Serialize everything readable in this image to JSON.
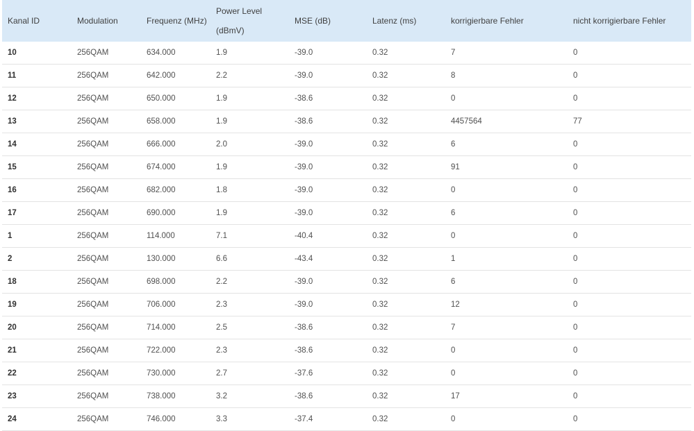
{
  "table": {
    "headers": [
      {
        "line1": "Kanal ID",
        "line2": ""
      },
      {
        "line1": "Modulation",
        "line2": ""
      },
      {
        "line1": "Frequenz (MHz)",
        "line2": ""
      },
      {
        "line1": "Power Level",
        "line2": "(dBmV)"
      },
      {
        "line1": "MSE (dB)",
        "line2": ""
      },
      {
        "line1": "Latenz (ms)",
        "line2": ""
      },
      {
        "line1": "korrigierbare Fehler",
        "line2": ""
      },
      {
        "line1": "nicht korrigierbare Fehler",
        "line2": ""
      }
    ],
    "rows": [
      [
        "10",
        "256QAM",
        "634.000",
        "1.9",
        "-39.0",
        "0.32",
        "7",
        "0"
      ],
      [
        "11",
        "256QAM",
        "642.000",
        "2.2",
        "-39.0",
        "0.32",
        "8",
        "0"
      ],
      [
        "12",
        "256QAM",
        "650.000",
        "1.9",
        "-38.6",
        "0.32",
        "0",
        "0"
      ],
      [
        "13",
        "256QAM",
        "658.000",
        "1.9",
        "-38.6",
        "0.32",
        "4457564",
        "77"
      ],
      [
        "14",
        "256QAM",
        "666.000",
        "2.0",
        "-39.0",
        "0.32",
        "6",
        "0"
      ],
      [
        "15",
        "256QAM",
        "674.000",
        "1.9",
        "-39.0",
        "0.32",
        "91",
        "0"
      ],
      [
        "16",
        "256QAM",
        "682.000",
        "1.8",
        "-39.0",
        "0.32",
        "0",
        "0"
      ],
      [
        "17",
        "256QAM",
        "690.000",
        "1.9",
        "-39.0",
        "0.32",
        "6",
        "0"
      ],
      [
        "1",
        "256QAM",
        "114.000",
        "7.1",
        "-40.4",
        "0.32",
        "0",
        "0"
      ],
      [
        "2",
        "256QAM",
        "130.000",
        "6.6",
        "-43.4",
        "0.32",
        "1",
        "0"
      ],
      [
        "18",
        "256QAM",
        "698.000",
        "2.2",
        "-39.0",
        "0.32",
        "6",
        "0"
      ],
      [
        "19",
        "256QAM",
        "706.000",
        "2.3",
        "-39.0",
        "0.32",
        "12",
        "0"
      ],
      [
        "20",
        "256QAM",
        "714.000",
        "2.5",
        "-38.6",
        "0.32",
        "7",
        "0"
      ],
      [
        "21",
        "256QAM",
        "722.000",
        "2.3",
        "-38.6",
        "0.32",
        "0",
        "0"
      ],
      [
        "22",
        "256QAM",
        "730.000",
        "2.7",
        "-37.6",
        "0.32",
        "0",
        "0"
      ],
      [
        "23",
        "256QAM",
        "738.000",
        "3.2",
        "-38.6",
        "0.32",
        "17",
        "0"
      ],
      [
        "24",
        "256QAM",
        "746.000",
        "3.3",
        "-37.4",
        "0.32",
        "0",
        "0"
      ]
    ]
  },
  "colors": {
    "header_background": "#d9e9f7",
    "row_divider": "#e3e3e3"
  }
}
